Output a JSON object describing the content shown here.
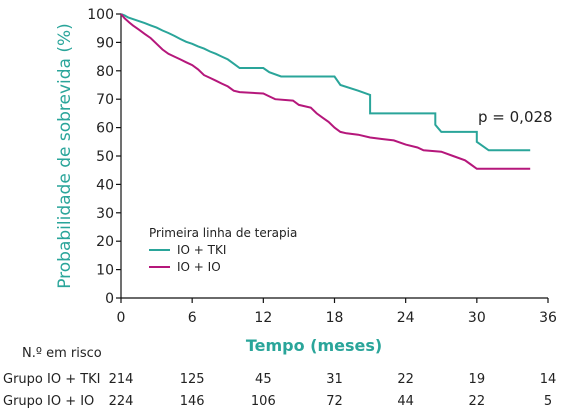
{
  "chart_data": {
    "type": "line",
    "ylabel": "Probabilidade de sobrevida (%)",
    "xlabel": "Tempo (meses)",
    "xlim": [
      0,
      36
    ],
    "ylim": [
      0,
      100
    ],
    "xticks": [
      0,
      6,
      12,
      18,
      24,
      30,
      36
    ],
    "yticks": [
      0,
      10,
      20,
      30,
      40,
      50,
      60,
      70,
      80,
      90,
      100
    ],
    "grid": false,
    "annotation": "p = 0,028",
    "legend": {
      "title": "Primeira linha de terapia",
      "placement": "lower-left"
    },
    "series": [
      {
        "name": "IO + TKI",
        "color": "#2aa59a",
        "points": [
          [
            0,
            100
          ],
          [
            0.3,
            99.5
          ],
          [
            0.6,
            98.8
          ],
          [
            1,
            98.2
          ],
          [
            1.5,
            97.5
          ],
          [
            2,
            96.8
          ],
          [
            2.5,
            96
          ],
          [
            3,
            95.2
          ],
          [
            3.5,
            94.2
          ],
          [
            4,
            93.3
          ],
          [
            4.5,
            92.3
          ],
          [
            5,
            91.2
          ],
          [
            5.5,
            90.2
          ],
          [
            6,
            89.5
          ],
          [
            6.5,
            88.6
          ],
          [
            7,
            87.8
          ],
          [
            7.5,
            86.8
          ],
          [
            8,
            86
          ],
          [
            8.5,
            85
          ],
          [
            9,
            84
          ],
          [
            9.5,
            82.5
          ],
          [
            10,
            81
          ],
          [
            12,
            81
          ],
          [
            12.5,
            79.5
          ],
          [
            13.5,
            78
          ],
          [
            18,
            78
          ],
          [
            18.5,
            75
          ],
          [
            20,
            73
          ],
          [
            21,
            71.5
          ],
          [
            21,
            65
          ],
          [
            26.5,
            65
          ],
          [
            26.5,
            61
          ],
          [
            27,
            58.5
          ],
          [
            30,
            58.5
          ],
          [
            30,
            55
          ],
          [
            31,
            52
          ],
          [
            34.5,
            52
          ]
        ]
      },
      {
        "name": "IO + IO",
        "color": "#b5177b",
        "points": [
          [
            0,
            100
          ],
          [
            0.3,
            98.5
          ],
          [
            0.7,
            97
          ],
          [
            1,
            96
          ],
          [
            1.5,
            94.5
          ],
          [
            2,
            93
          ],
          [
            2.5,
            91.5
          ],
          [
            3,
            89.5
          ],
          [
            3.5,
            87.5
          ],
          [
            4,
            86
          ],
          [
            4.5,
            85
          ],
          [
            5,
            84
          ],
          [
            5.5,
            83
          ],
          [
            6,
            82
          ],
          [
            6.5,
            80.5
          ],
          [
            7,
            78.5
          ],
          [
            7.5,
            77.5
          ],
          [
            8,
            76.5
          ],
          [
            8.5,
            75.5
          ],
          [
            9,
            74.5
          ],
          [
            9.5,
            73
          ],
          [
            10,
            72.5
          ],
          [
            12,
            72
          ],
          [
            12.5,
            71
          ],
          [
            13,
            70
          ],
          [
            14.5,
            69.5
          ],
          [
            15,
            68
          ],
          [
            16,
            67
          ],
          [
            16.5,
            65
          ],
          [
            17,
            63.5
          ],
          [
            17.5,
            62
          ],
          [
            18,
            60
          ],
          [
            18.5,
            58.5
          ],
          [
            19,
            58
          ],
          [
            20,
            57.5
          ],
          [
            21,
            56.5
          ],
          [
            22,
            56
          ],
          [
            23,
            55.5
          ],
          [
            24,
            54
          ],
          [
            25,
            53
          ],
          [
            25.5,
            52
          ],
          [
            27,
            51.5
          ],
          [
            28,
            50
          ],
          [
            29,
            48.5
          ],
          [
            29.5,
            47
          ],
          [
            30,
            45.5
          ],
          [
            34.5,
            45.5
          ]
        ]
      }
    ],
    "risk_table": {
      "title": "N.º em risco",
      "times": [
        0,
        6,
        12,
        18,
        24,
        30,
        36
      ],
      "rows": [
        {
          "label": "Grupo IO + TKI",
          "values": [
            "214",
            "125",
            "45",
            "31",
            "22",
            "19",
            "14"
          ]
        },
        {
          "label": "Grupo IO + IO",
          "values": [
            "224",
            "146",
            "106",
            "72",
            "44",
            "22",
            "5"
          ]
        }
      ]
    }
  }
}
